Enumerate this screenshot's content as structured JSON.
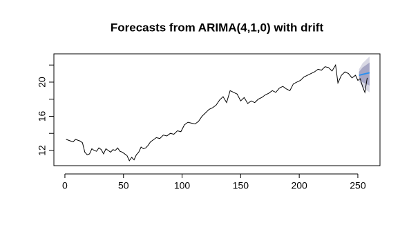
{
  "chart_data": {
    "type": "line",
    "title": "Forecasts from ARIMA(4,1,0) with drift",
    "x": [
      1,
      3,
      5,
      7,
      9,
      11,
      13,
      15,
      17,
      19,
      21,
      23,
      25,
      27,
      29,
      31,
      33,
      35,
      37,
      39,
      41,
      43,
      45,
      47,
      49,
      51,
      53,
      55,
      57,
      59,
      61,
      63,
      65,
      67,
      69,
      71,
      73,
      75,
      78,
      81,
      84,
      87,
      90,
      93,
      96,
      99,
      102,
      105,
      108,
      111,
      114,
      117,
      120,
      123,
      126,
      129,
      132,
      135,
      138,
      141,
      144,
      147,
      150,
      153,
      156,
      159,
      162,
      165,
      168,
      171,
      174,
      177,
      180,
      183,
      186,
      189,
      192,
      195,
      198,
      201,
      204,
      207,
      210,
      213,
      216,
      219,
      222,
      225,
      228,
      231,
      233,
      236,
      239,
      242,
      245,
      248,
      250,
      252,
      254,
      256,
      258
    ],
    "series": [
      {
        "color": "#000000",
        "values": [
          13.3,
          13.2,
          13.1,
          13.0,
          13.3,
          13.2,
          13.1,
          12.9,
          11.8,
          11.5,
          11.6,
          12.2,
          12.0,
          11.9,
          12.3,
          12.1,
          11.6,
          12.2,
          12.0,
          11.8,
          12.1,
          12.0,
          12.3,
          11.9,
          11.8,
          11.6,
          11.4,
          10.8,
          11.2,
          10.9,
          11.5,
          11.8,
          12.4,
          12.2,
          12.3,
          12.6,
          13.0,
          13.2,
          13.5,
          13.4,
          13.8,
          13.7,
          14.0,
          13.9,
          14.3,
          14.2,
          15.0,
          15.3,
          15.2,
          15.1,
          15.4,
          16.0,
          16.4,
          16.8,
          17.0,
          17.3,
          17.9,
          18.3,
          17.6,
          19.0,
          18.8,
          18.6,
          17.8,
          18.2,
          17.5,
          17.8,
          17.6,
          18.0,
          18.2,
          18.5,
          18.7,
          19.0,
          18.8,
          19.3,
          19.5,
          19.2,
          19.0,
          19.8,
          20.0,
          20.2,
          20.6,
          20.8,
          21.0,
          21.2,
          21.5,
          21.4,
          21.8,
          21.7,
          21.3,
          22.0,
          19.9,
          20.8,
          21.2,
          21.0,
          20.5,
          20.8,
          20.2,
          20.4,
          19.5,
          18.8,
          20.5
        ]
      }
    ],
    "forecast": {
      "x": [
        251,
        254,
        257,
        260
      ],
      "mean": [
        20.8,
        20.9,
        21.0,
        21.1
      ],
      "mean_color": "#2a8ff0",
      "lo80": [
        20.4,
        20.0,
        19.8,
        19.6
      ],
      "hi80": [
        21.2,
        21.7,
        22.0,
        22.3
      ],
      "color80": "#a6a6c4",
      "lo95": [
        20.1,
        19.5,
        19.1,
        18.8
      ],
      "hi95": [
        21.5,
        22.2,
        22.6,
        23.0
      ],
      "color95": "#d8d8e4"
    },
    "xlim": [
      -9.4,
      268.9
    ],
    "ylim": [
      10.22,
      23.31
    ],
    "xticks": [
      0,
      50,
      100,
      150,
      200,
      250
    ],
    "yticks": [
      12,
      16,
      20
    ],
    "minor_yticks": [
      14,
      18,
      22
    ]
  }
}
